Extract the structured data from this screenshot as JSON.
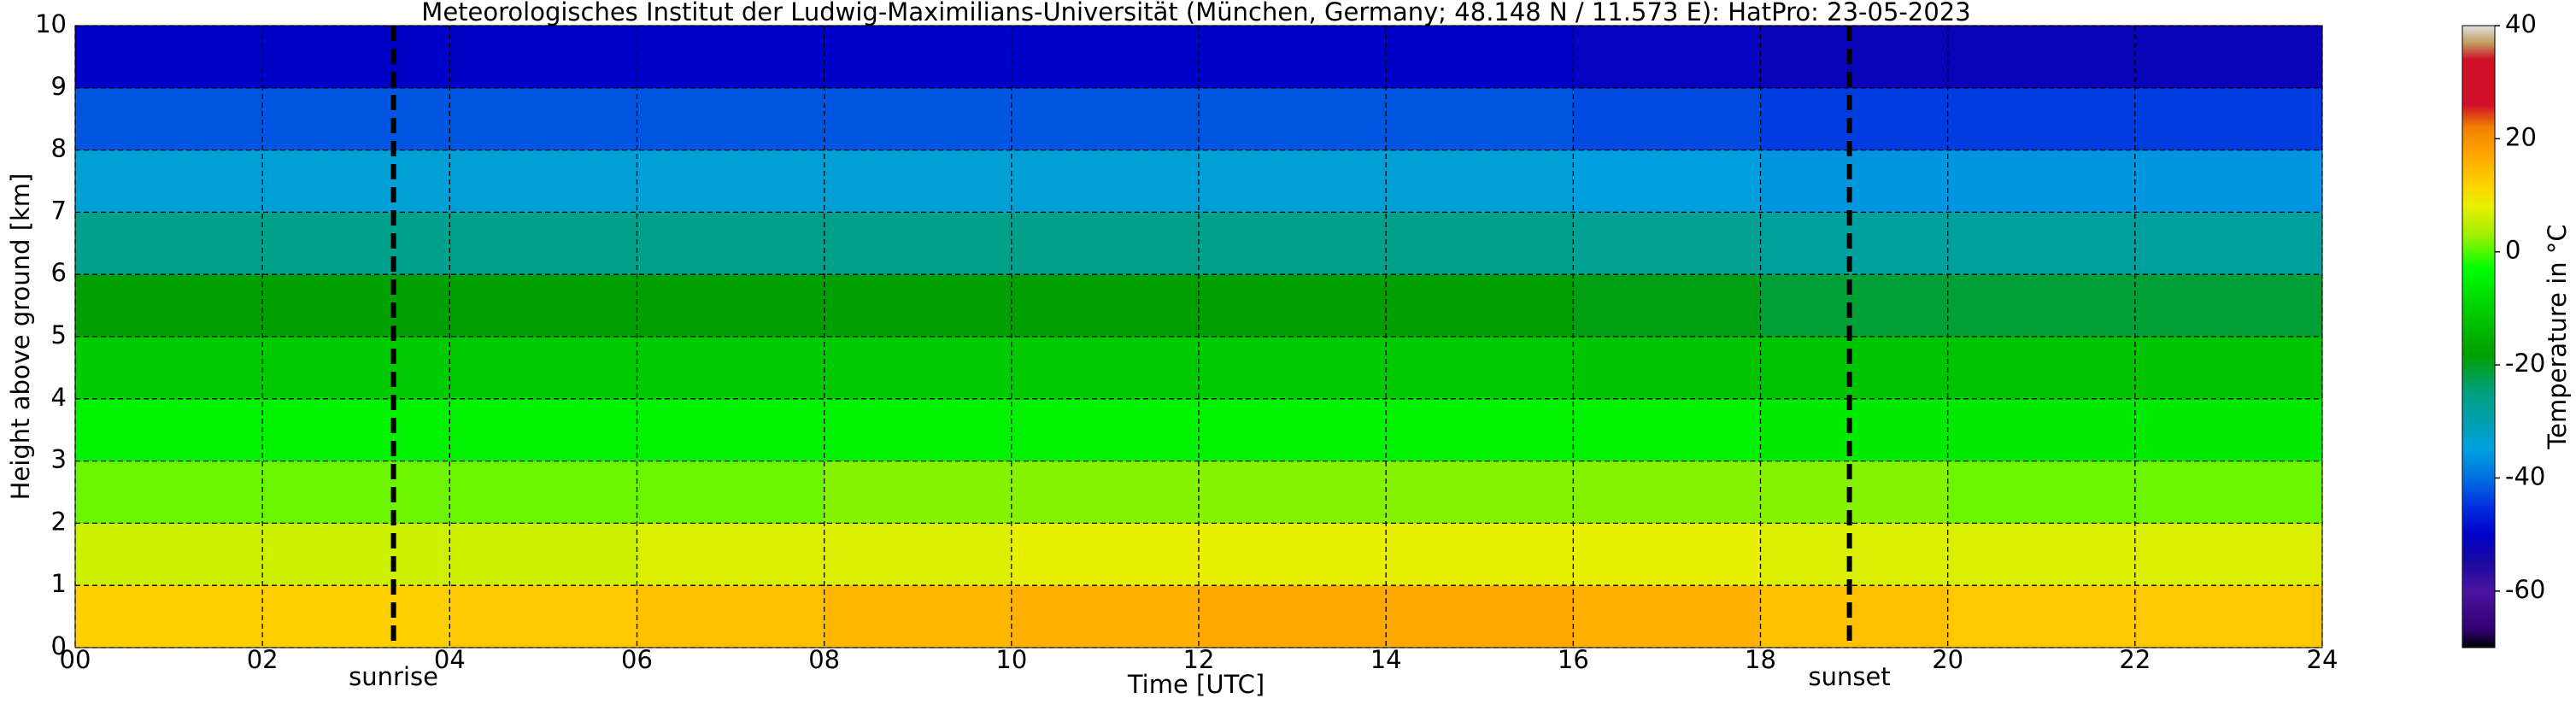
{
  "chart_data": {
    "type": "heatmap",
    "title": "Meteorologisches Institut der Ludwig-Maximilians-Universität (München, Germany; 48.148 N / 11.573 E):    HatPro: 23-05-2023",
    "xlabel": "Time [UTC]",
    "ylabel": "Height above ground [km]",
    "colorbar_label": "Temperature in °C",
    "x_edges": [
      0,
      2,
      4,
      6,
      8,
      10,
      12,
      14,
      16,
      18,
      20,
      22,
      24
    ],
    "y_edges": [
      0,
      1,
      2,
      3,
      4,
      5,
      6,
      7,
      8,
      9,
      10
    ],
    "z": [
      [
        12,
        12,
        13,
        14,
        15,
        16,
        17,
        17,
        16,
        14,
        13,
        13
      ],
      [
        6,
        6,
        6,
        7,
        7,
        8,
        8,
        8,
        8,
        7,
        7,
        7
      ],
      [
        1,
        1,
        1,
        1,
        2,
        2,
        2,
        2,
        2,
        2,
        1,
        1
      ],
      [
        -5,
        -5,
        -5,
        -5,
        -5,
        -5,
        -5,
        -5,
        -5,
        -6,
        -6,
        -6
      ],
      [
        -11,
        -11,
        -11,
        -11,
        -11,
        -11,
        -11,
        -11,
        -12,
        -12,
        -12,
        -12
      ],
      [
        -18,
        -18,
        -18,
        -18,
        -18,
        -18,
        -18,
        -18,
        -19,
        -21,
        -21,
        -21
      ],
      [
        -26,
        -26,
        -26,
        -26,
        -26,
        -26,
        -26,
        -26,
        -27,
        -28,
        -28,
        -28
      ],
      [
        -34,
        -34,
        -34,
        -34,
        -34,
        -34,
        -34,
        -34,
        -35,
        -36,
        -36,
        -36
      ],
      [
        -42,
        -42,
        -42,
        -42,
        -42,
        -42,
        -42,
        -42,
        -43,
        -44,
        -44,
        -44
      ],
      [
        -50,
        -50,
        -50,
        -50,
        -50,
        -50,
        -50,
        -50,
        -51,
        -52,
        -52,
        -52
      ]
    ],
    "xlim": [
      0,
      24
    ],
    "ylim": [
      0,
      10
    ],
    "xticks": [
      {
        "value": 0,
        "label": "00"
      },
      {
        "value": 2,
        "label": "02"
      },
      {
        "value": 4,
        "label": "04"
      },
      {
        "value": 6,
        "label": "06"
      },
      {
        "value": 8,
        "label": "08"
      },
      {
        "value": 10,
        "label": "10"
      },
      {
        "value": 12,
        "label": "12"
      },
      {
        "value": 14,
        "label": "14"
      },
      {
        "value": 16,
        "label": "16"
      },
      {
        "value": 18,
        "label": "18"
      },
      {
        "value": 20,
        "label": "20"
      },
      {
        "value": 22,
        "label": "22"
      },
      {
        "value": 24,
        "label": "24"
      }
    ],
    "yticks": [
      0,
      1,
      2,
      3,
      4,
      5,
      6,
      7,
      8,
      9,
      10
    ],
    "grid": true,
    "clim": [
      -70,
      40
    ],
    "cticks": [
      -60,
      -40,
      -20,
      0,
      20,
      40
    ],
    "colorscale": [
      [
        -70,
        "#000000"
      ],
      [
        -67,
        "#300070"
      ],
      [
        -60,
        "#4a14a0"
      ],
      [
        -55,
        "#1a0aa0"
      ],
      [
        -50,
        "#0000c8"
      ],
      [
        -45,
        "#0030e0"
      ],
      [
        -40,
        "#0070e0"
      ],
      [
        -35,
        "#00a0e0"
      ],
      [
        -30,
        "#00a0b0"
      ],
      [
        -25,
        "#00a080"
      ],
      [
        -18,
        "#00a000"
      ],
      [
        -10,
        "#00d000"
      ],
      [
        -3,
        "#00ff00"
      ],
      [
        3,
        "#a0f000"
      ],
      [
        8,
        "#e8f000"
      ],
      [
        12,
        "#ffd000"
      ],
      [
        18,
        "#ffa000"
      ],
      [
        22,
        "#f08000"
      ],
      [
        26,
        "#d01028"
      ],
      [
        34,
        "#d01028"
      ],
      [
        37,
        "#c0a060"
      ],
      [
        40,
        "#e0e0e0"
      ]
    ],
    "annotations": [
      {
        "x": 3.4,
        "label": "sunrise"
      },
      {
        "x": 18.95,
        "label": "sunset"
      }
    ]
  }
}
